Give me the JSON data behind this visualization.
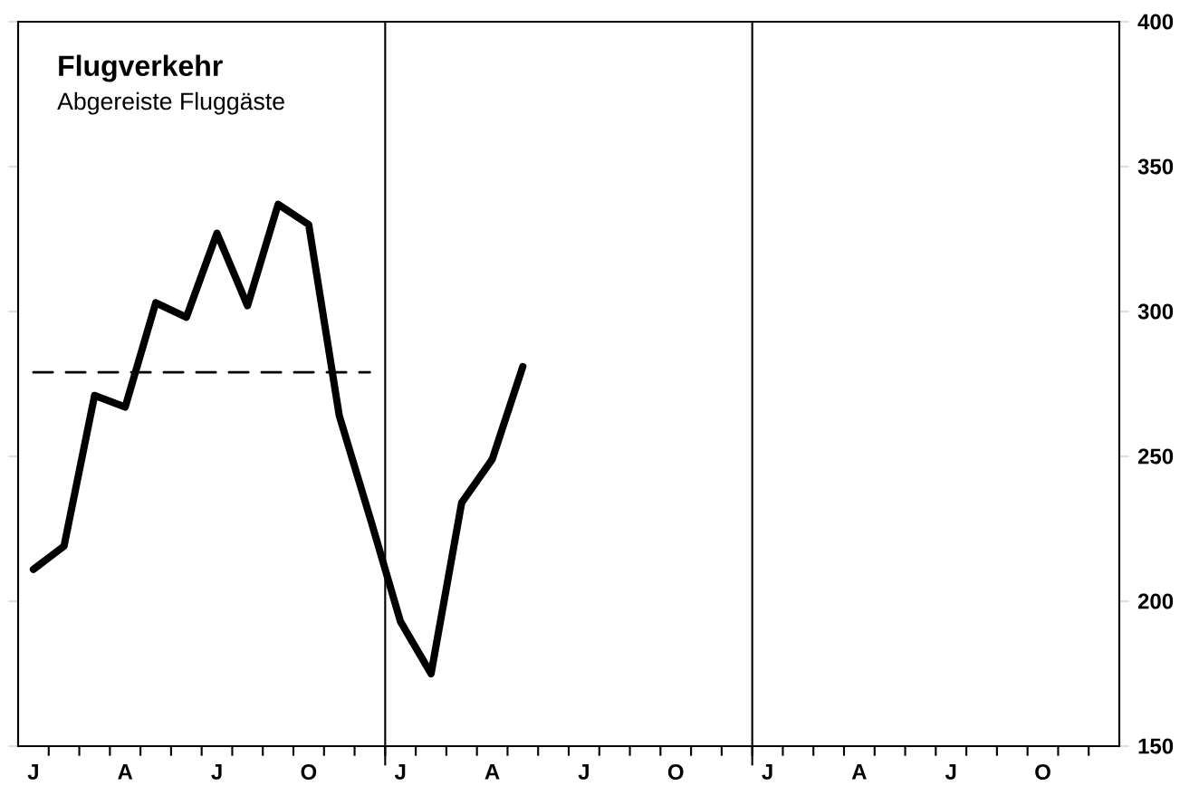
{
  "chart_data": {
    "type": "line",
    "title": "Flugverkehr",
    "subtitle": "Abgereiste Fluggäste",
    "categories": [
      "J",
      null,
      null,
      "A",
      null,
      null,
      "J",
      null,
      null,
      "O",
      null,
      null,
      "J",
      null,
      null,
      "A",
      null,
      null,
      "J",
      null,
      null,
      "O",
      null,
      null,
      "J",
      null,
      null,
      "A",
      null,
      null,
      "J",
      null,
      null,
      "O",
      null,
      null
    ],
    "ylim": [
      150,
      400
    ],
    "yticks": [
      150,
      200,
      250,
      300,
      350,
      400
    ],
    "series": [
      {
        "color": "#000000",
        "values": [
          211,
          219,
          271,
          267,
          303,
          298,
          327,
          302,
          337,
          330,
          264,
          229,
          193,
          175,
          234,
          249,
          281,
          null,
          null,
          null,
          null,
          null,
          null,
          null,
          null,
          null,
          null,
          null,
          null,
          null,
          null,
          null,
          null,
          null,
          null,
          null
        ]
      },
      {
        "color": "#000000",
        "line_style": "dashed",
        "values": [
          279,
          279,
          279,
          279,
          279,
          279,
          279,
          279,
          279,
          279,
          279,
          279,
          null,
          null,
          null,
          null,
          null,
          null,
          null,
          null,
          null,
          null,
          null,
          null,
          null,
          null,
          null,
          null,
          null,
          null,
          null,
          null,
          null,
          null,
          null,
          null
        ]
      }
    ],
    "grid": false,
    "marker": "none",
    "line_style": "solid"
  }
}
